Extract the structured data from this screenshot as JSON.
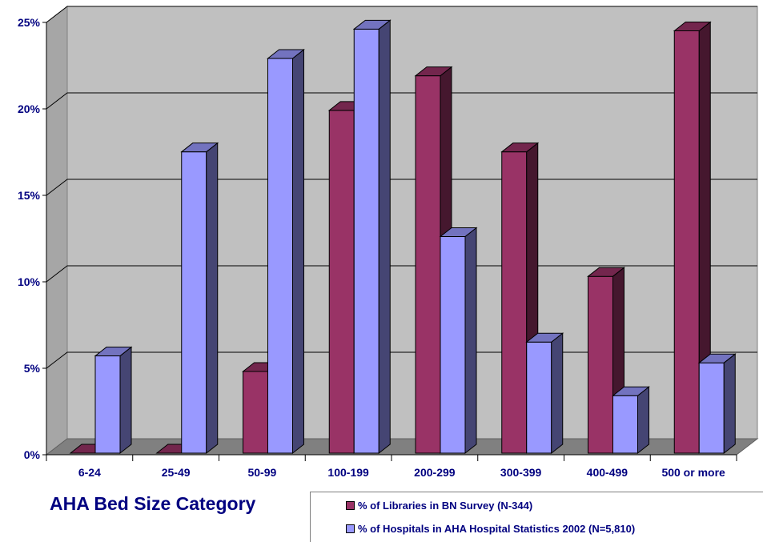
{
  "chart_data": {
    "type": "bar",
    "xlabel": "AHA Bed Size Category",
    "ylabel": "",
    "categories": [
      "6-24",
      "25-49",
      "50-99",
      "100-199",
      "200-299",
      "300-399",
      "400-499",
      "500 or more"
    ],
    "series": [
      {
        "name": "% of Libraries in BN Survey (N-344)",
        "color": "#993366",
        "values": [
          0,
          0,
          5.0,
          20.1,
          22.1,
          17.7,
          10.5,
          24.7
        ]
      },
      {
        "name": "% of Hospitals in AHA Hospital Statistics 2002 (N=5,810)",
        "color": "#9999ff",
        "values": [
          5.9,
          17.7,
          23.1,
          24.8,
          12.8,
          6.7,
          3.6,
          5.5
        ]
      }
    ],
    "ylim": [
      0,
      25
    ],
    "yticks": [
      "0%",
      "5%",
      "10%",
      "15%",
      "20%",
      "25%"
    ],
    "grid": true,
    "legend_position": "bottom-right"
  }
}
